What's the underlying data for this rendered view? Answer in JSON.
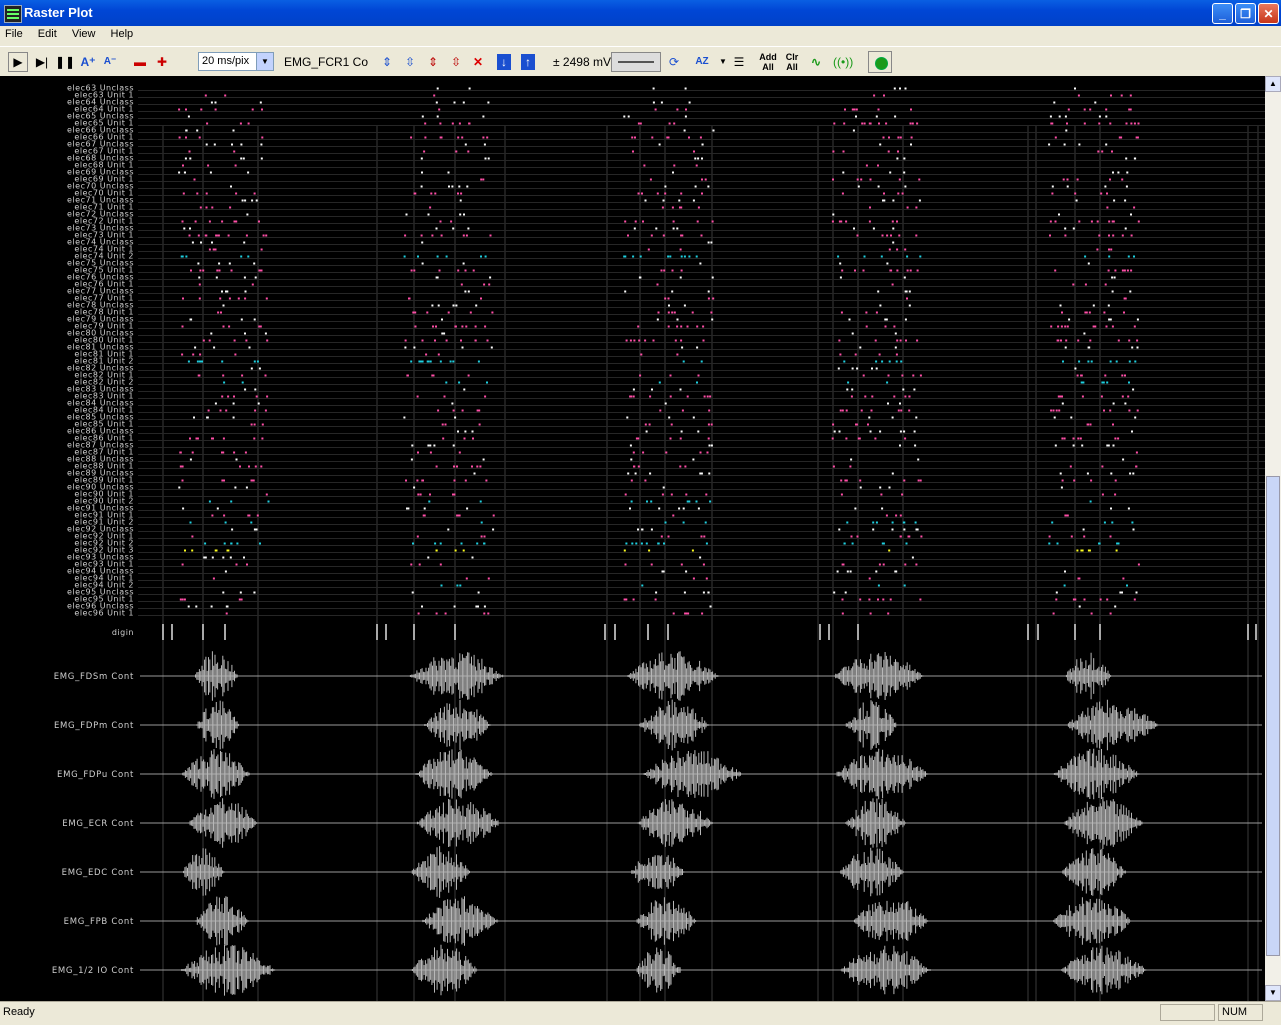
{
  "window": {
    "title": "Raster Plot",
    "controls": [
      "_",
      "❐",
      "✕"
    ]
  },
  "menu": [
    "File",
    "Edit",
    "View",
    "Help"
  ],
  "toolbar": {
    "time_scale": "20 ms/pix",
    "channel": "EMG_FCR1 Co",
    "voltage": "± 2498 mV",
    "add_all": "Add All",
    "clr_all": "Clr All"
  },
  "raster_rows": [
    "elec63 Unclass",
    "elec63 Unit 1",
    "elec64 Unclass",
    "elec64 Unit 1",
    "elec65 Unclass",
    "elec65 Unit 1",
    "elec66 Unclass",
    "elec66 Unit 1",
    "elec67 Unclass",
    "elec67 Unit 1",
    "elec68 Unclass",
    "elec68 Unit 1",
    "elec69 Unclass",
    "elec69 Unit 1",
    "elec70 Unclass",
    "elec70 Unit 1",
    "elec71 Unclass",
    "elec71 Unit 1",
    "elec72 Unclass",
    "elec72 Unit 1",
    "elec73 Unclass",
    "elec73 Unit 1",
    "elec74 Unclass",
    "elec74 Unit 1",
    "elec74 Unit 2",
    "elec75 Unclass",
    "elec75 Unit 1",
    "elec76 Unclass",
    "elec76 Unit 1",
    "elec77 Unclass",
    "elec77 Unit 1",
    "elec78 Unclass",
    "elec78 Unit 1",
    "elec79 Unclass",
    "elec79 Unit 1",
    "elec80 Unclass",
    "elec80 Unit 1",
    "elec81 Unclass",
    "elec81 Unit 1",
    "elec81 Unit 2",
    "elec82 Unclass",
    "elec82 Unit 1",
    "elec82 Unit 2",
    "elec83 Unclass",
    "elec83 Unit 1",
    "elec84 Unclass",
    "elec84 Unit 1",
    "elec85 Unclass",
    "elec85 Unit 1",
    "elec86 Unclass",
    "elec86 Unit 1",
    "elec87 Unclass",
    "elec87 Unit 1",
    "elec88 Unclass",
    "elec88 Unit 1",
    "elec89 Unclass",
    "elec89 Unit 1",
    "elec90 Unclass",
    "elec90 Unit 1",
    "elec90 Unit 2",
    "elec91 Unclass",
    "elec91 Unit 1",
    "elec91 Unit 2",
    "elec92 Unclass",
    "elec92 Unit 1",
    "elec92 Unit 2",
    "elec92 Unit 3",
    "elec93 Unclass",
    "elec93 Unit 1",
    "elec94 Unclass",
    "elec94 Unit 1",
    "elec94 Unit 2",
    "elec95 Unclass",
    "elec95 Unit 1",
    "elec96 Unclass",
    "elec96 Unit 1"
  ],
  "digital_channel": "digin",
  "emg_channels": [
    "EMG_FDSm Cont",
    "EMG_FDPm Cont",
    "EMG_FDPu Cont",
    "EMG_ECR Cont",
    "EMG_EDC Cont",
    "EMG_FPB Cont",
    "EMG_1/2 IO Cont"
  ],
  "colors": {
    "unclassified": "#ffffff",
    "unit1": "#ff4fa8",
    "unit2": "#1fd0e0",
    "unit3": "#ffff20",
    "emg": "#b8b8b8"
  },
  "status": {
    "text": "Ready",
    "num": "NUM"
  }
}
